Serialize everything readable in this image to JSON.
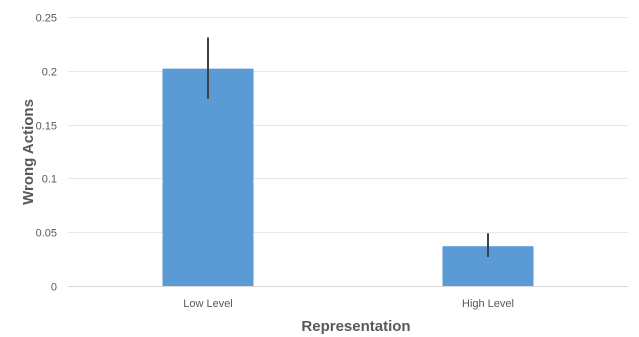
{
  "chart_data": {
    "type": "bar",
    "categories": [
      "Low Level",
      "High Level"
    ],
    "values": [
      0.202,
      0.037
    ],
    "error": [
      {
        "low": 0.174,
        "high": 0.231
      },
      {
        "low": 0.027,
        "high": 0.049
      }
    ],
    "yticks": [
      "0",
      "0.05",
      "0.1",
      "0.15",
      "0.2",
      "0.25"
    ],
    "ylim": [
      0,
      0.25
    ],
    "xlabel": "Representation",
    "ylabel": "Wrong Actions",
    "grid": true,
    "legend": "none",
    "colors": {
      "bar": "#5B9BD5",
      "error_bar": "#404040",
      "grid": "#E7E7E7",
      "text": "#595959"
    }
  }
}
